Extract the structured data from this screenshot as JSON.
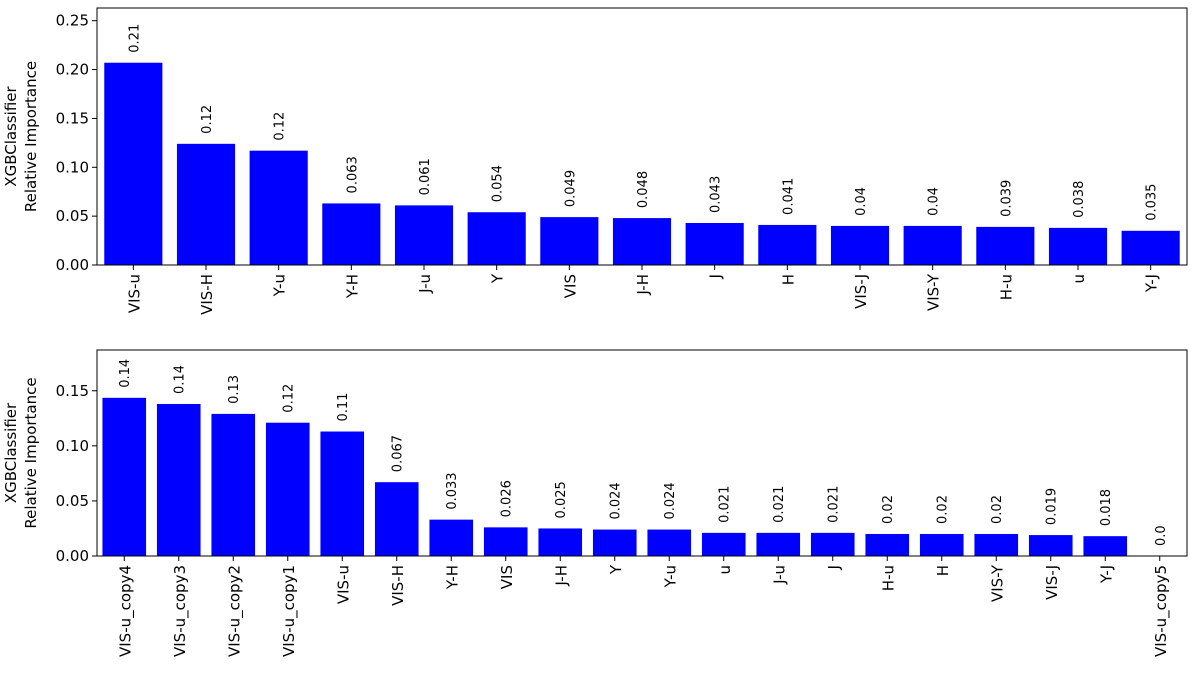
{
  "chart_data": [
    {
      "type": "bar",
      "ylabel": [
        "XGBClassifier",
        "Relative Importance"
      ],
      "categories": [
        "VIS-u",
        "VIS-H",
        "Y-u",
        "Y-H",
        "J-u",
        "Y",
        "VIS",
        "J-H",
        "J",
        "H",
        "VIS-J",
        "VIS-Y",
        "H-u",
        "u",
        "Y-J"
      ],
      "values": [
        0.207,
        0.124,
        0.117,
        0.063,
        0.061,
        0.054,
        0.049,
        0.048,
        0.043,
        0.041,
        0.04,
        0.04,
        0.039,
        0.038,
        0.035
      ],
      "value_labels": [
        "0.21",
        "0.12",
        "0.12",
        "0.063",
        "0.061",
        "0.054",
        "0.049",
        "0.048",
        "0.043",
        "0.041",
        "0.04",
        "0.04",
        "0.039",
        "0.038",
        "0.035"
      ],
      "color": "#0000ff",
      "ylim": [
        0,
        0.263
      ],
      "yticks": [
        {
          "value": 0,
          "label": "0.00"
        },
        {
          "value": 0.05,
          "label": "0.05"
        },
        {
          "value": 0.1,
          "label": "0.10"
        },
        {
          "value": 0.15,
          "label": "0.15"
        },
        {
          "value": 0.2,
          "label": "0.20"
        },
        {
          "value": 0.25,
          "label": "0.25"
        }
      ]
    },
    {
      "type": "bar",
      "ylabel": [
        "XGBClassifier",
        "Relative Importance"
      ],
      "categories": [
        "VIS-u_copy4",
        "VIS-u_copy3",
        "VIS-u_copy2",
        "VIS-u_copy1",
        "VIS-u",
        "VIS-H",
        "Y-H",
        "VIS",
        "J-H",
        "Y",
        "Y-u",
        "u",
        "J-u",
        "J",
        "H-u",
        "H",
        "VIS-Y",
        "VIS-J",
        "Y-J",
        "VIS-u_copy5"
      ],
      "values": [
        0.1436,
        0.138,
        0.129,
        0.121,
        0.113,
        0.067,
        0.033,
        0.026,
        0.025,
        0.024,
        0.024,
        0.021,
        0.021,
        0.021,
        0.02,
        0.02,
        0.02,
        0.019,
        0.018,
        0.0
      ],
      "value_labels": [
        "0.14",
        "0.14",
        "0.13",
        "0.12",
        "0.11",
        "0.067",
        "0.033",
        "0.026",
        "0.025",
        "0.024",
        "0.024",
        "0.021",
        "0.021",
        "0.021",
        "0.02",
        "0.02",
        "0.02",
        "0.019",
        "0.018",
        "0.0"
      ],
      "color": "#0000ff",
      "ylim": [
        0,
        0.187
      ],
      "yticks": [
        {
          "value": 0,
          "label": "0.00"
        },
        {
          "value": 0.05,
          "label": "0.05"
        },
        {
          "value": 0.1,
          "label": "0.10"
        },
        {
          "value": 0.15,
          "label": "0.15"
        }
      ]
    }
  ]
}
